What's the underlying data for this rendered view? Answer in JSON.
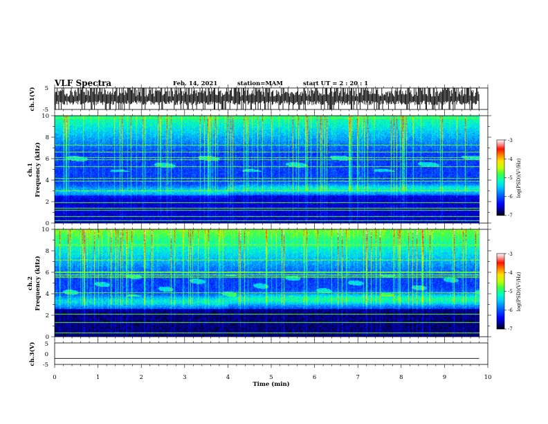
{
  "header": {
    "title": "VLF Spectra",
    "date": "Feb. 14, 2021",
    "station": "station=MAM",
    "start": "start  UT =   2 : 20 : 1"
  },
  "chart_data": [
    {
      "type": "line",
      "panel": "ch1-waveform",
      "ylabel": "ch.1(V)",
      "ylim": [
        -5,
        5
      ],
      "yticks": [
        "5",
        "-5"
      ],
      "x_range_min": [
        0,
        10
      ],
      "description_series": [
        {
          "values": [
            -5,
            5
          ],
          "note": "dense high-amplitude impulsive waveform spanning approximately -5 to 5 V over 0 to 9.8 min"
        }
      ]
    },
    {
      "type": "heatmap",
      "panel": "ch1-spectrogram",
      "ylabel": "ch.1\nFrequency (kHz)",
      "ylabel_line1": "ch.1",
      "ylabel_line2": "Frequency (kHz)",
      "ylim": [
        0,
        10
      ],
      "yticks": [
        "0",
        "2",
        "4",
        "6",
        "8",
        "10"
      ],
      "xlim": [
        0,
        10
      ],
      "data_extent_min": 9.8,
      "colorbar": {
        "label": "log(PSD)(V²/Hz)",
        "ticks": [
          "-3",
          "-4",
          "-5",
          "-6",
          "-7"
        ],
        "range": [
          -7,
          -3
        ]
      },
      "features": [
        {
          "name": "background band",
          "freq_khz": [
            2.6,
            3.4
          ],
          "log_psd": -5.4
        },
        {
          "name": "upper noise",
          "freq_khz": [
            7.5,
            10
          ],
          "log_psd": -5.0
        },
        {
          "name": "chorus emissions",
          "freq_khz": [
            4.8,
            6.2
          ],
          "log_psd": -5.3
        }
      ]
    },
    {
      "type": "heatmap",
      "panel": "ch2-spectrogram",
      "ylabel_line1": "ch.2",
      "ylabel_line2": "Frequency (kHz)",
      "ylim": [
        0,
        10
      ],
      "yticks": [
        "0",
        "2",
        "4",
        "6",
        "8",
        "10"
      ],
      "xlim": [
        0,
        10
      ],
      "data_extent_min": 9.8,
      "colorbar": {
        "label": "log(PSD)(V²/Hz)",
        "ticks": [
          "-3",
          "-4",
          "-5",
          "-6",
          "-7"
        ],
        "range": [
          -7,
          -3
        ]
      },
      "features": [
        {
          "name": "background band",
          "freq_khz": [
            2.8,
            3.8
          ],
          "log_psd": -5.2
        },
        {
          "name": "upper noise",
          "freq_khz": [
            6.5,
            10
          ],
          "log_psd": -4.7
        },
        {
          "name": "chorus emissions",
          "freq_khz": [
            4.0,
            5.8
          ],
          "log_psd": -5.1
        }
      ]
    },
    {
      "type": "line",
      "panel": "ch3-waveform",
      "ylabel": "ch.3(V)",
      "ylim": [
        -5,
        5
      ],
      "yticks": [
        "5",
        "0",
        "-5"
      ],
      "xlabel": "Time (min)",
      "xticks": [
        "0",
        "1",
        "2",
        "3",
        "4",
        "5",
        "6",
        "7",
        "8",
        "9",
        "10"
      ],
      "x": [
        0,
        9.8
      ],
      "y": [
        -2.2,
        -2.2
      ]
    }
  ],
  "colors": {
    "colormap": [
      "#000000",
      "#000080",
      "#0000c8",
      "#0040ff",
      "#00a0ff",
      "#00ffff",
      "#30ff90",
      "#80ff30",
      "#ffff00",
      "#ff9000",
      "#ff2000",
      "#ffffff"
    ]
  }
}
